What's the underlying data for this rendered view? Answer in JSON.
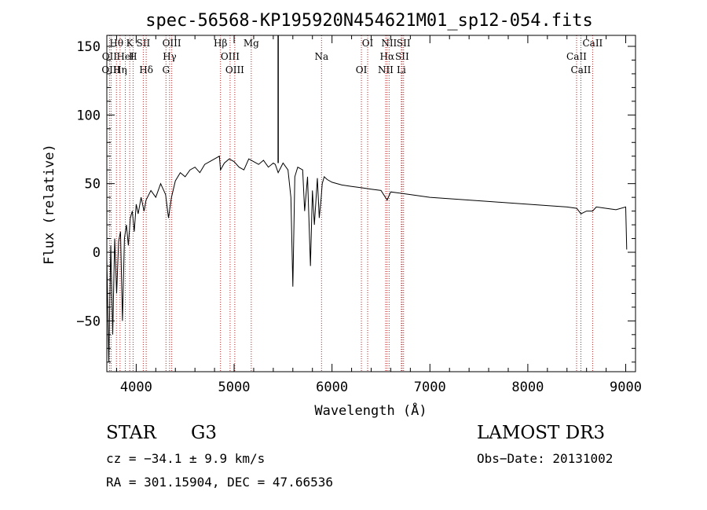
{
  "chart_data": {
    "type": "line",
    "title": "spec-56568-KP195920N454621M01_sp12-054.fits",
    "xlabel": "Wavelength (Å)",
    "ylabel": "Flux (relative)",
    "xlim": [
      3700,
      9100
    ],
    "ylim": [
      -87,
      158
    ],
    "x_ticks": [
      4000,
      5000,
      6000,
      7000,
      8000,
      9000
    ],
    "y_ticks": [
      -50,
      0,
      50,
      100,
      150
    ],
    "grid": false,
    "series": [
      {
        "name": "spectrum",
        "x": [
          3700,
          3720,
          3740,
          3760,
          3780,
          3800,
          3820,
          3840,
          3860,
          3880,
          3900,
          3920,
          3940,
          3960,
          3980,
          4000,
          4020,
          4050,
          4080,
          4100,
          4150,
          4200,
          4250,
          4300,
          4330,
          4360,
          4400,
          4450,
          4500,
          4550,
          4600,
          4650,
          4700,
          4750,
          4800,
          4850,
          4861,
          4900,
          4950,
          5000,
          5050,
          5100,
          5150,
          5200,
          5250,
          5300,
          5350,
          5400,
          5420,
          5450,
          5500,
          5550,
          5580,
          5600,
          5620,
          5650,
          5700,
          5720,
          5750,
          5780,
          5800,
          5820,
          5850,
          5870,
          5890,
          5900,
          5920,
          5950,
          6000,
          6100,
          6200,
          6300,
          6400,
          6500,
          6563,
          6600,
          6700,
          6800,
          6900,
          7000,
          7200,
          7400,
          7600,
          7800,
          8000,
          8200,
          8400,
          8500,
          8542,
          8600,
          8662,
          8700,
          8800,
          8900,
          9000,
          9010
        ],
        "values": [
          -5,
          -80,
          5,
          -60,
          10,
          -30,
          8,
          15,
          -50,
          10,
          20,
          5,
          25,
          30,
          15,
          35,
          28,
          40,
          30,
          38,
          45,
          40,
          50,
          42,
          25,
          40,
          52,
          58,
          55,
          60,
          62,
          58,
          64,
          66,
          68,
          70,
          60,
          65,
          68,
          66,
          62,
          60,
          68,
          66,
          64,
          67,
          62,
          65,
          64,
          58,
          65,
          60,
          40,
          -25,
          55,
          62,
          60,
          30,
          55,
          -10,
          45,
          20,
          54,
          25,
          40,
          50,
          55,
          53,
          51,
          49,
          48,
          47,
          46,
          45,
          38,
          44,
          43,
          42,
          41,
          40,
          39,
          38,
          37,
          36,
          35,
          34,
          33,
          32,
          28,
          30,
          30,
          33,
          32,
          31,
          33,
          2
        ]
      }
    ],
    "spectral_lines": [
      {
        "name": "Hθ",
        "x": 3798
      },
      {
        "name": "OII",
        "x": 3727
      },
      {
        "name": "OIII",
        "x": 3743
      },
      {
        "name": "K",
        "x": 3934
      },
      {
        "name": "HeI",
        "x": 3889
      },
      {
        "name": "Hη",
        "x": 3835
      },
      {
        "name": "SII",
        "x": 4072
      },
      {
        "name": "H",
        "x": 3968
      },
      {
        "name": "Hδ",
        "x": 4102
      },
      {
        "name": "OIII",
        "x": 4363
      },
      {
        "name": "Hγ",
        "x": 4341
      },
      {
        "name": "G",
        "x": 4304
      },
      {
        "name": "Hβ",
        "x": 4861
      },
      {
        "name": "OIII",
        "x": 4959
      },
      {
        "name": "OIII",
        "x": 5007
      },
      {
        "name": "Mg",
        "x": 5175
      },
      {
        "name": "Na",
        "x": 5893
      },
      {
        "name": "OI",
        "x": 6300
      },
      {
        "name": "OI",
        "x": 6364
      },
      {
        "name": "Hα",
        "x": 6563
      },
      {
        "name": "NII",
        "x": 6548
      },
      {
        "name": "NII",
        "x": 6583
      },
      {
        "name": "SII",
        "x": 6716
      },
      {
        "name": "Li",
        "x": 6708
      },
      {
        "name": "SII",
        "x": 6731
      },
      {
        "name": "CaII",
        "x": 8498
      },
      {
        "name": "CaII",
        "x": 8542
      },
      {
        "name": "CaII",
        "x": 8662
      }
    ]
  },
  "object": {
    "class": "STAR",
    "subclass": "G3"
  },
  "survey": "LAMOST DR3",
  "redshift_text": "cz = −34.1 ± 9.9 km/s",
  "obs_date_text": "Obs−Date: 20131002",
  "coords_text": "RA = 301.15904, DEC =  47.66536",
  "colors": {
    "spectrum": "#000000",
    "line_marker": "#b22222",
    "axis": "#000000"
  }
}
